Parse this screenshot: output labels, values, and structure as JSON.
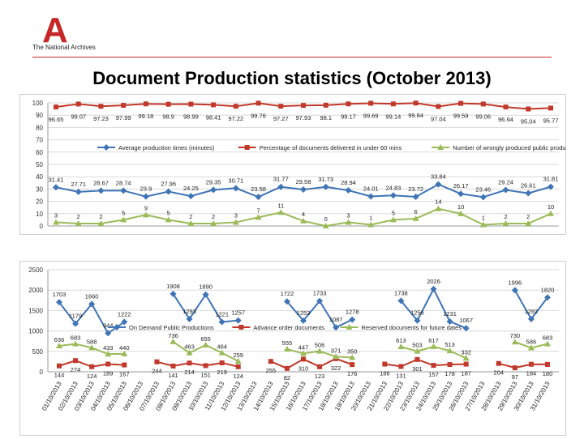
{
  "header": {
    "logo_letter": "A",
    "org_name": "The National Archives",
    "title": "Document Production statistics (October 2013)",
    "accent_color": "#c62828"
  },
  "chart_data": [
    {
      "type": "line",
      "title": "",
      "ylim": [
        0,
        100
      ],
      "yticks": [
        0,
        10,
        20,
        30,
        40,
        50,
        60,
        70,
        80,
        90,
        100
      ],
      "grid": true,
      "legend_position": "middle",
      "x_count": 23,
      "series": [
        {
          "name": "Average production times (minutes)",
          "color": "#3f74b5",
          "marker": "diamond",
          "values": [
            31.41,
            27.71,
            28.67,
            28.74,
            23.9,
            27.96,
            24.25,
            29.35,
            30.71,
            23.58,
            31.77,
            29.58,
            31.73,
            28.94,
            24.01,
            24.83,
            23.72,
            33.84,
            26.17,
            23.46,
            29.24,
            26.61,
            31.81
          ],
          "labels": [
            "31.41",
            "27.71",
            "28.67",
            "28.74",
            "23.9",
            "27.96",
            "24.25",
            "29.35",
            "30.71",
            "23.58",
            "31.77",
            "29.58",
            "31.73",
            "28.94",
            "24.01",
            "24.83",
            "23.72",
            "33.84",
            "26.17",
            "23.46",
            "29.24",
            "26.61",
            "31.81"
          ]
        },
        {
          "name": "Percentage of documents delivered in under 60 mins",
          "color": "#c0392b",
          "marker": "square",
          "values": [
            96.65,
            99.07,
            97.23,
            97.99,
            99.18,
            98.9,
            98.99,
            98.41,
            97.22,
            99.76,
            97.27,
            97.93,
            98.1,
            99.17,
            99.69,
            99.14,
            99.84,
            97.04,
            99.59,
            99.06,
            96.64,
            95.04,
            95.77
          ],
          "labels": [
            "96.65",
            "99.07",
            "97.23",
            "97.99",
            "99.18",
            "98.9",
            "98.99",
            "98.41",
            "97.22",
            "99.76",
            "97.27",
            "97.93",
            "98.1",
            "99.17",
            "99.69",
            "99.14",
            "99.84",
            "97.04",
            "99.59",
            "99.06",
            "96.64",
            "95.04",
            "95.77"
          ]
        },
        {
          "name": "Number of wrongly produced public productions",
          "color": "#9bbb59",
          "marker": "triangle",
          "values": [
            3,
            2,
            2,
            5,
            9,
            5,
            2,
            2,
            3,
            7,
            11,
            4,
            0,
            3,
            1,
            5,
            6,
            14,
            10,
            1,
            2,
            2,
            10
          ],
          "labels": [
            "3",
            "2",
            "2",
            "5",
            "9",
            "5",
            "2",
            "2",
            "3",
            "7",
            "11",
            "4",
            "0",
            "3",
            "1",
            "5",
            "6",
            "14",
            "10",
            "1",
            "2",
            "2",
            "10"
          ]
        }
      ]
    },
    {
      "type": "line",
      "title": "",
      "ylim": [
        0,
        2500
      ],
      "yticks": [
        0,
        500,
        1000,
        1500,
        2000,
        2500
      ],
      "grid": true,
      "legend_position": "middle",
      "categories": [
        "01/10/2013",
        "02/10/2013",
        "03/10/2013",
        "04/10/2013",
        "05/10/2013",
        "06/10/2013",
        "07/10/2013",
        "08/10/2013",
        "09/10/2013",
        "10/10/2013",
        "11/10/2013",
        "12/10/2013",
        "13/10/2013",
        "14/10/2013",
        "15/10/2013",
        "16/10/2013",
        "17/10/2013",
        "18/10/2013",
        "19/10/2013",
        "20/10/2013",
        "21/10/2013",
        "22/10/2013",
        "23/10/2013",
        "24/10/2013",
        "25/10/2013",
        "26/10/2013",
        "27/10/2013",
        "28/10/2013",
        "29/10/2013",
        "30/10/2013",
        "31/10/2013"
      ],
      "series": [
        {
          "name": "On Demand Public Productions",
          "color": "#3f74b5",
          "marker": "diamond",
          "values": [
            1703,
            1179,
            1660,
            944,
            1222,
            null,
            null,
            1908,
            1293,
            1890,
            1221,
            1257,
            null,
            null,
            1722,
            1253,
            1733,
            1087,
            1278,
            null,
            null,
            1738,
            1256,
            2026,
            1231,
            1067,
            null,
            null,
            1996,
            1292,
            1820
          ],
          "labels": [
            "1703",
            "1179",
            "1660",
            "944",
            "1222",
            null,
            null,
            "1908",
            "1293",
            "1890",
            "1221",
            "1257",
            null,
            null,
            "1722",
            "1253",
            "1733",
            "1087",
            "1278",
            null,
            null,
            "1738",
            "1256",
            "2026",
            "1231",
            "1067",
            null,
            null,
            "1996",
            "1292",
            "1820"
          ]
        },
        {
          "name": "Advance order documents",
          "color": "#c0392b",
          "marker": "square",
          "values": [
            144,
            274,
            124,
            189,
            167,
            null,
            244,
            141,
            214,
            151,
            219,
            124,
            null,
            255,
            82,
            310,
            123,
            322,
            176,
            null,
            188,
            131,
            301,
            157,
            178,
            187,
            null,
            204,
            97,
            184,
            180
          ],
          "labels": [
            "144",
            "274",
            "124",
            "189",
            "167",
            null,
            "244",
            "141",
            "214",
            "151",
            "219",
            "124",
            null,
            "255",
            "82",
            "310",
            "123",
            "322",
            "176",
            null,
            "188",
            "131",
            "301",
            "157",
            "178",
            "187",
            null,
            "204",
            "97",
            "184",
            "180"
          ]
        },
        {
          "name": "Reserved documents for future dates",
          "color": "#9bbb59",
          "marker": "triangle",
          "values": [
            636,
            683,
            588,
            433,
            440,
            null,
            null,
            736,
            463,
            655,
            464,
            259,
            null,
            null,
            555,
            447,
            506,
            371,
            350,
            null,
            null,
            613,
            503,
            617,
            513,
            332,
            null,
            null,
            730,
            586,
            683
          ],
          "labels": [
            "636",
            "683",
            "588",
            "433",
            "440",
            null,
            null,
            "736",
            "463",
            "655",
            "464",
            "259",
            null,
            null,
            "555",
            "447",
            "506",
            "371",
            "350",
            null,
            null,
            "613",
            "503",
            "617",
            "513",
            "332",
            null,
            null,
            "730",
            "586",
            "683"
          ]
        }
      ]
    }
  ]
}
